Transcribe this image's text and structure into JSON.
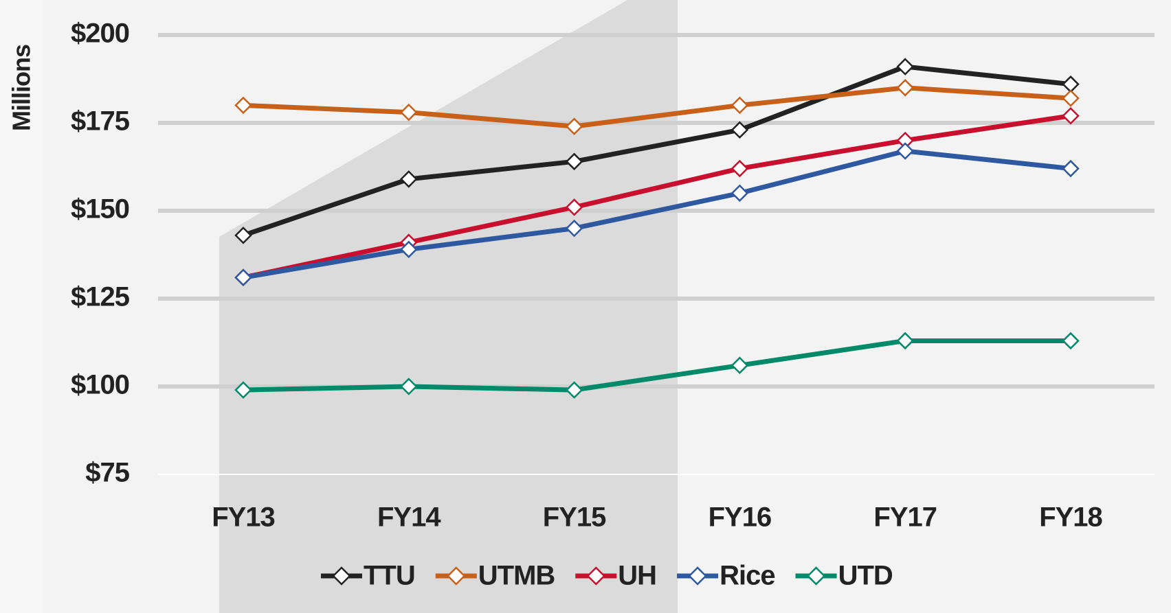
{
  "chart_data": {
    "type": "line",
    "y_label": "Millions",
    "categories": [
      "FY13",
      "FY14",
      "FY15",
      "FY16",
      "FY17",
      "FY18"
    ],
    "series": [
      {
        "name": "TTU",
        "color": "#222222",
        "values": [
          143,
          159,
          164,
          173,
          191,
          186
        ]
      },
      {
        "name": "UTMB",
        "color": "#c8601a",
        "values": [
          180,
          178,
          174,
          180,
          185,
          182
        ]
      },
      {
        "name": "UH",
        "color": "#c8102e",
        "values": [
          131,
          141,
          151,
          162,
          170,
          177
        ]
      },
      {
        "name": "Rice",
        "color": "#2e58a0",
        "values": [
          131,
          139,
          145,
          155,
          167,
          162
        ]
      },
      {
        "name": "UTD",
        "color": "#008a6a",
        "values": [
          99,
          100,
          99,
          106,
          113,
          113
        ]
      }
    ],
    "ylim": [
      75,
      200
    ],
    "yticks": [
      {
        "value": 75,
        "label": "$75"
      },
      {
        "value": 100,
        "label": "$100"
      },
      {
        "value": 125,
        "label": "$125"
      },
      {
        "value": 150,
        "label": "$150"
      },
      {
        "value": 175,
        "label": "$175"
      },
      {
        "value": 200,
        "label": "$200"
      }
    ],
    "grid": true,
    "legend": "bottom"
  }
}
